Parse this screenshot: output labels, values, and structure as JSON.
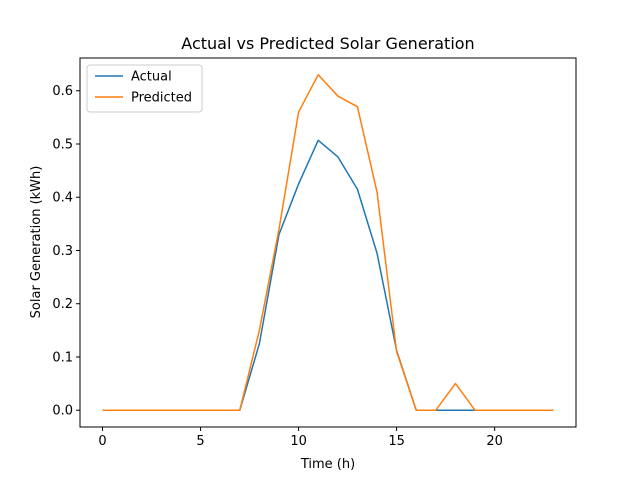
{
  "chart_data": {
    "type": "line",
    "title": "Actual vs Predicted Solar Generation",
    "xlabel": "Time (h)",
    "ylabel": "Solar Generation (kWh)",
    "x": [
      0,
      1,
      2,
      3,
      4,
      5,
      6,
      7,
      8,
      9,
      10,
      11,
      12,
      13,
      14,
      15,
      16,
      17,
      18,
      19,
      20,
      21,
      22,
      23
    ],
    "xlim": [
      -1.15,
      24.15
    ],
    "ylim": [
      -0.0315,
      0.6615
    ],
    "xticks": [
      0,
      5,
      10,
      15,
      20
    ],
    "yticks": [
      0.0,
      0.1,
      0.2,
      0.3,
      0.4,
      0.5,
      0.6
    ],
    "grid": false,
    "legend": "top-left",
    "series": [
      {
        "name": "Actual",
        "color": "#1f77b4",
        "values": [
          0,
          0,
          0,
          0,
          0,
          0,
          0,
          0,
          0.125,
          0.33,
          0.425,
          0.507,
          0.476,
          0.415,
          0.295,
          0.112,
          0,
          0,
          0,
          0,
          0,
          0,
          0,
          0
        ]
      },
      {
        "name": "Predicted",
        "color": "#ff7f0e",
        "values": [
          0,
          0,
          0,
          0,
          0,
          0,
          0,
          0,
          0.15,
          0.34,
          0.56,
          0.63,
          0.59,
          0.57,
          0.41,
          0.11,
          0,
          0,
          0.05,
          0,
          0,
          0,
          0,
          0
        ]
      }
    ]
  }
}
